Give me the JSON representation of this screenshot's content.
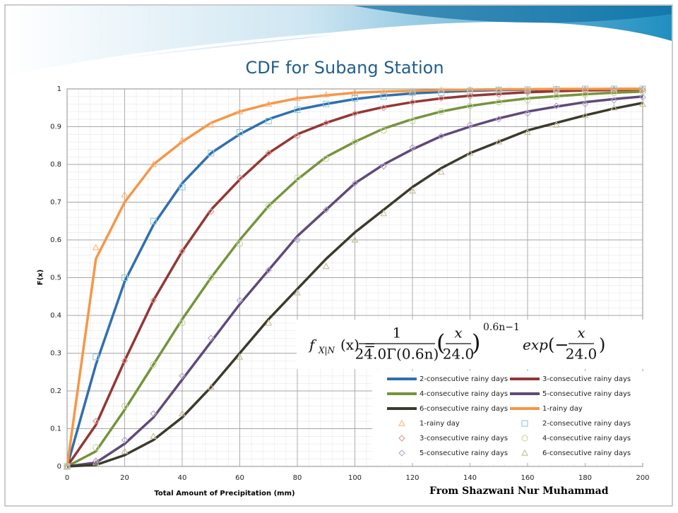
{
  "slide_title": "CDF for Subang Station",
  "credit": "From Shazwani Nur Muhammad",
  "chart_data": {
    "type": "line",
    "x_label": "Total Amount of Precipitation (mm)",
    "y_label": "F(x)",
    "xlim": [
      0,
      200
    ],
    "ylim": [
      0,
      1
    ],
    "xticks": [
      0,
      20,
      40,
      60,
      80,
      100,
      120,
      140,
      160,
      180,
      200
    ],
    "yticks": [
      0,
      0.1,
      0.2,
      0.3,
      0.4,
      0.5,
      0.6,
      0.7,
      0.8,
      0.9,
      1
    ],
    "grid": true,
    "x": [
      0,
      10,
      20,
      30,
      40,
      50,
      60,
      70,
      80,
      90,
      100,
      110,
      120,
      130,
      140,
      150,
      160,
      170,
      180,
      190,
      200
    ],
    "annotation": {
      "f": "f",
      "sub": "X|N",
      "lhs": "(x) =",
      "num1": "1",
      "den1": "24.0Γ(0.6n)",
      "open1": "(",
      "num2": "x",
      "den2": "24.0",
      "close1": ")",
      "power": "0.6n−1",
      "exp": "exp",
      "open2": "(−",
      "num3": "x",
      "den3": "24.0",
      "close2": ")"
    },
    "series": [
      {
        "name": "2-consecutive rainy days",
        "kind": "line",
        "color": "#2f6fb0",
        "values": [
          0,
          0.27,
          0.49,
          0.64,
          0.75,
          0.83,
          0.88,
          0.92,
          0.945,
          0.96,
          0.973,
          0.982,
          0.988,
          0.992,
          0.995,
          0.997,
          0.998,
          0.999,
          0.999,
          1,
          1
        ]
      },
      {
        "name": "3-consecutive rainy days",
        "kind": "line",
        "color": "#943634",
        "values": [
          0,
          0.11,
          0.28,
          0.44,
          0.57,
          0.68,
          0.76,
          0.83,
          0.88,
          0.91,
          0.935,
          0.952,
          0.965,
          0.975,
          0.982,
          0.987,
          0.991,
          0.994,
          0.996,
          0.997,
          0.998
        ]
      },
      {
        "name": "4-consecutive rainy days",
        "kind": "line",
        "color": "#77933c",
        "values": [
          0,
          0.04,
          0.15,
          0.27,
          0.39,
          0.5,
          0.6,
          0.69,
          0.76,
          0.82,
          0.86,
          0.895,
          0.92,
          0.94,
          0.955,
          0.966,
          0.975,
          0.981,
          0.986,
          0.99,
          0.993
        ]
      },
      {
        "name": "5-consecutive rainy days",
        "kind": "line",
        "color": "#5f497a",
        "values": [
          0,
          0.01,
          0.06,
          0.13,
          0.23,
          0.33,
          0.43,
          0.52,
          0.61,
          0.68,
          0.75,
          0.8,
          0.84,
          0.875,
          0.9,
          0.922,
          0.94,
          0.953,
          0.965,
          0.973,
          0.98
        ]
      },
      {
        "name": "6-consecutive rainy days",
        "kind": "line",
        "color": "#3b3a2c",
        "values": [
          0,
          0.004,
          0.03,
          0.07,
          0.13,
          0.21,
          0.3,
          0.39,
          0.47,
          0.55,
          0.62,
          0.68,
          0.74,
          0.79,
          0.83,
          0.86,
          0.89,
          0.91,
          0.93,
          0.948,
          0.963
        ]
      },
      {
        "name": "1-rainy day",
        "kind": "line",
        "color": "#f79646",
        "values": [
          0,
          0.55,
          0.7,
          0.8,
          0.86,
          0.91,
          0.94,
          0.96,
          0.975,
          0.983,
          0.99,
          0.993,
          0.995,
          0.997,
          0.998,
          0.999,
          0.999,
          1,
          1,
          1,
          1
        ]
      },
      {
        "name": "1-rainy day",
        "kind": "marker",
        "marker": "triangle",
        "color": "#fab47e",
        "values": [
          0,
          0.58,
          0.72,
          0.8,
          0.865,
          0.905,
          0.94,
          0.96,
          0.975,
          0.985,
          0.99,
          0.993,
          0.995,
          0.997,
          0.998,
          0.998,
          0.999,
          1,
          1,
          1,
          1
        ]
      },
      {
        "name": "2-consecutive rainy days",
        "kind": "marker",
        "marker": "square",
        "color": "#8ecbdc",
        "values": [
          0,
          0.29,
          0.5,
          0.65,
          0.74,
          0.83,
          0.885,
          0.915,
          0.945,
          0.96,
          0.975,
          0.98,
          0.99,
          0.99,
          0.995,
          0.997,
          0.998,
          0.999,
          1,
          1,
          1
        ]
      },
      {
        "name": "3-consecutive rainy days",
        "kind": "marker",
        "marker": "diamond",
        "color": "#d99694",
        "values": [
          0,
          0.12,
          0.28,
          0.44,
          0.57,
          0.675,
          0.765,
          0.83,
          0.875,
          0.91,
          0.935,
          0.95,
          0.965,
          0.975,
          0.98,
          0.985,
          0.99,
          0.993,
          0.996,
          0.997,
          0.998
        ]
      },
      {
        "name": "4-consecutive rainy days",
        "kind": "marker",
        "marker": "circle",
        "color": "#c3d69b",
        "values": [
          0,
          0.05,
          0.16,
          0.27,
          0.38,
          0.5,
          0.59,
          0.69,
          0.765,
          0.815,
          0.86,
          0.89,
          0.915,
          0.94,
          0.955,
          0.965,
          0.97,
          0.98,
          0.985,
          0.99,
          0.992
        ]
      },
      {
        "name": "5-consecutive rainy days",
        "kind": "marker",
        "marker": "diamond",
        "color": "#b3a2c7",
        "values": [
          0,
          0.015,
          0.07,
          0.14,
          0.24,
          0.34,
          0.44,
          0.52,
          0.6,
          0.68,
          0.75,
          0.795,
          0.845,
          0.875,
          0.905,
          0.92,
          0.935,
          0.955,
          0.96,
          0.97,
          0.978
        ]
      },
      {
        "name": "6-consecutive rainy days",
        "kind": "marker",
        "marker": "triangle",
        "color": "#c4bd97",
        "values": [
          0,
          0.01,
          0.04,
          0.08,
          0.14,
          0.21,
          0.29,
          0.38,
          0.46,
          0.53,
          0.6,
          0.67,
          0.73,
          0.78,
          0.83,
          0.86,
          0.885,
          0.905,
          0.93,
          0.95,
          0.96
        ]
      }
    ]
  }
}
